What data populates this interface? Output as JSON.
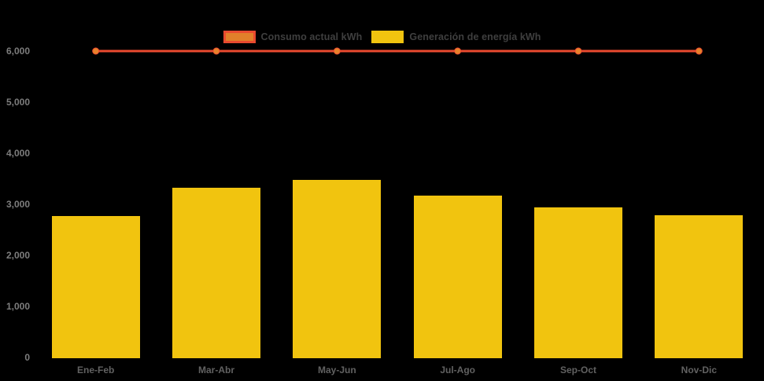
{
  "legend": {
    "consumo_label": "Consumo actual kWh",
    "generacion_label": "Generación de energía kWh"
  },
  "colors": {
    "background": "#000000",
    "bar_fill": "#f1c40f",
    "line_stroke": "#ea4a2f",
    "marker_fill": "#e8822b",
    "legend_text": "#3f3f3f",
    "y_axis_text": "#7d7d7d",
    "x_axis_text": "#616161"
  },
  "chart_data": {
    "type": "bar",
    "subtype": "bar-with-line-overlay",
    "title": "",
    "xlabel": "",
    "ylabel": "",
    "categories": [
      "Ene-Feb",
      "Mar-Abr",
      "May-Jun",
      "Jul-Ago",
      "Sep-Oct",
      "Nov-Dic"
    ],
    "series": [
      {
        "name": "Consumo actual kWh",
        "type": "line",
        "color": "#ea4a2f",
        "marker_color": "#e8822b",
        "values": [
          6000,
          6000,
          6000,
          6000,
          6000,
          6000
        ]
      },
      {
        "name": "Generación de energía kWh",
        "type": "bar",
        "color": "#f1c40f",
        "values": [
          2770,
          3320,
          3480,
          3170,
          2940,
          2790
        ]
      }
    ],
    "ylim": [
      0,
      6000
    ],
    "y_tick_interval": 1000,
    "y_tick_labels": [
      "0",
      "1,000",
      "2,000",
      "3,000",
      "4,000",
      "5,000",
      "6,000"
    ],
    "grid": false,
    "legend_position": "top-center"
  }
}
